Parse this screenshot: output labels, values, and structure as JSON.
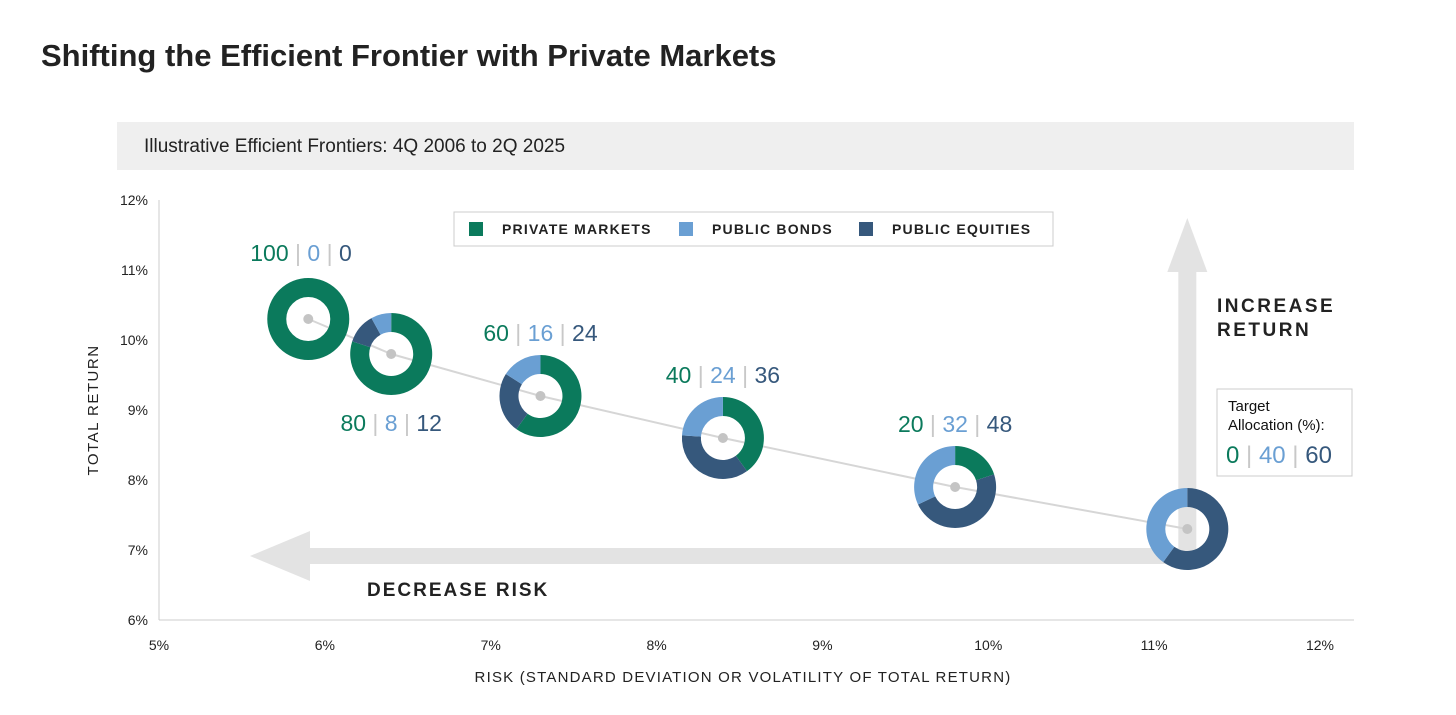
{
  "title": "Shifting the Efficient Frontier with Private Markets",
  "chart_data": {
    "type": "scatter",
    "title": "Illustrative Efficient Frontiers: 4Q 2006 to 2Q 2025",
    "xlabel": "RISK (STANDARD DEVIATION OR VOLATILITY OF TOTAL RETURN)",
    "ylabel": "TOTAL RETURN",
    "xlim": [
      5,
      12
    ],
    "ylim": [
      6,
      12
    ],
    "xticks": [
      "5%",
      "6%",
      "7%",
      "8%",
      "9%",
      "10%",
      "11%",
      "12%"
    ],
    "yticks": [
      "6%",
      "7%",
      "8%",
      "9%",
      "10%",
      "11%",
      "12%"
    ],
    "legend": {
      "placement": "top-center",
      "entries": [
        "PRIVATE MARKETS",
        "PUBLIC BONDS",
        "PUBLIC EQUITIES"
      ]
    },
    "colors": {
      "private": "#0b7a5c",
      "bonds": "#6a9fd3",
      "equities": "#36587c"
    },
    "points": [
      {
        "risk": 5.9,
        "return": 10.3,
        "private": 100,
        "bonds": 0,
        "equities": 0,
        "label_pos": "above-left"
      },
      {
        "risk": 6.4,
        "return": 9.8,
        "private": 80,
        "bonds": 8,
        "equities": 12,
        "label_pos": "below"
      },
      {
        "risk": 7.3,
        "return": 9.2,
        "private": 60,
        "bonds": 16,
        "equities": 24,
        "label_pos": "above"
      },
      {
        "risk": 8.4,
        "return": 8.6,
        "private": 40,
        "bonds": 24,
        "equities": 36,
        "label_pos": "above"
      },
      {
        "risk": 9.8,
        "return": 7.9,
        "private": 20,
        "bonds": 32,
        "equities": 48,
        "label_pos": "above"
      },
      {
        "risk": 11.2,
        "return": 7.3,
        "private": 0,
        "bonds": 40,
        "equities": 60,
        "label_pos": "box"
      }
    ],
    "annotations": {
      "decrease_risk": "DECREASE RISK",
      "increase_return_1": "INCREASE",
      "increase_return_2": "RETURN",
      "target_1": "Target",
      "target_2": "Allocation (%):"
    }
  }
}
